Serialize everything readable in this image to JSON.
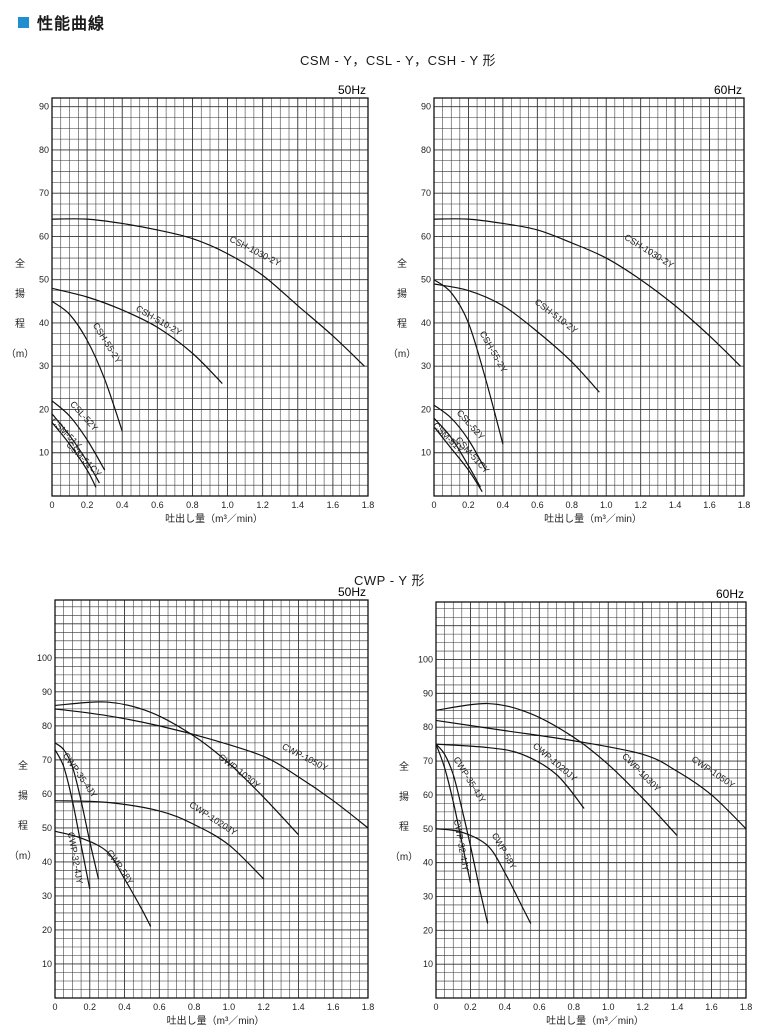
{
  "section": {
    "title": "性能曲線"
  },
  "groups": [
    {
      "title": "CSM - Y，CSL - Y，CSH - Y 形"
    },
    {
      "title": "CWP - Y 形"
    }
  ],
  "chart_data": [
    {
      "type": "line",
      "frequency": "50Hz",
      "xlabel": "吐出し量（m³／min）",
      "ylabel": [
        "全",
        "揚",
        "程",
        "（m）"
      ],
      "xlim": [
        0,
        1.8
      ],
      "ylim": [
        0,
        92
      ],
      "xticks": [
        0,
        0.2,
        0.4,
        0.6,
        0.8,
        1.0,
        1.2,
        1.4,
        1.6,
        1.8
      ],
      "xtick_labels": [
        "0",
        "0.2",
        "0.4",
        "0.6",
        "0.8",
        "1.0",
        "1.2",
        "1.4",
        "1.6",
        "1.8"
      ],
      "yticks": [
        10,
        20,
        30,
        40,
        50,
        60,
        70,
        80,
        90
      ],
      "series": [
        {
          "name": "CSH-1030-2Y",
          "label_at": [
            1.15,
            56
          ],
          "label_angle": 27,
          "points": [
            [
              0,
              64
            ],
            [
              0.2,
              64
            ],
            [
              0.4,
              63
            ],
            [
              0.6,
              61.5
            ],
            [
              0.8,
              59.5
            ],
            [
              1.0,
              56
            ],
            [
              1.2,
              51
            ],
            [
              1.4,
              44
            ],
            [
              1.6,
              37
            ],
            [
              1.78,
              30
            ]
          ]
        },
        {
          "name": "CSH-510-2Y",
          "label_at": [
            0.6,
            40
          ],
          "label_angle": 30,
          "points": [
            [
              0,
              48
            ],
            [
              0.2,
              46
            ],
            [
              0.4,
              43
            ],
            [
              0.6,
              39
            ],
            [
              0.8,
              33
            ],
            [
              0.97,
              26
            ]
          ]
        },
        {
          "name": "CSH-55-2Y",
          "label_at": [
            0.3,
            35
          ],
          "label_angle": 58,
          "points": [
            [
              0,
              45
            ],
            [
              0.1,
              42
            ],
            [
              0.2,
              36
            ],
            [
              0.3,
              27
            ],
            [
              0.4,
              15
            ]
          ]
        },
        {
          "name": "CSL-52Y",
          "label_at": [
            0.17,
            18
          ],
          "label_angle": 48,
          "points": [
            [
              0,
              22
            ],
            [
              0.1,
              18.5
            ],
            [
              0.2,
              13
            ],
            [
              0.3,
              6
            ]
          ]
        },
        {
          "name": "CSM-51Y",
          "label_at": [
            0.07,
            14
          ],
          "label_angle": 45,
          "points": [
            [
              0,
              19
            ],
            [
              0.1,
              14
            ],
            [
              0.2,
              8
            ],
            [
              0.27,
              3
            ]
          ]
        },
        {
          "name": "CSM-51CY",
          "label_at": [
            0.17,
            8
          ],
          "label_angle": 45,
          "points": [
            [
              0,
              17
            ],
            [
              0.1,
              12
            ],
            [
              0.2,
              6
            ],
            [
              0.25,
              2
            ]
          ]
        }
      ]
    },
    {
      "type": "line",
      "frequency": "60Hz",
      "xlabel": "吐出し量（m³／min）",
      "ylabel": [
        "全",
        "揚",
        "程",
        "（m）"
      ],
      "xlim": [
        0,
        1.8
      ],
      "ylim": [
        0,
        92
      ],
      "xticks": [
        0,
        0.2,
        0.4,
        0.6,
        0.8,
        1.0,
        1.2,
        1.4,
        1.6,
        1.8
      ],
      "xtick_labels": [
        "0",
        "0.2",
        "0.4",
        "0.6",
        "0.8",
        "1.0",
        "1.2",
        "1.4",
        "1.6",
        "1.8"
      ],
      "yticks": [
        10,
        20,
        30,
        40,
        50,
        60,
        70,
        80,
        90
      ],
      "series": [
        {
          "name": "CSH-1030-2Y",
          "label_at": [
            1.24,
            56
          ],
          "label_angle": 32,
          "points": [
            [
              0,
              64
            ],
            [
              0.2,
              64
            ],
            [
              0.4,
              63
            ],
            [
              0.6,
              61.5
            ],
            [
              0.8,
              58.5
            ],
            [
              1.0,
              55
            ],
            [
              1.2,
              50
            ],
            [
              1.4,
              44
            ],
            [
              1.6,
              37
            ],
            [
              1.78,
              30
            ]
          ]
        },
        {
          "name": "CSH-510-2Y",
          "label_at": [
            0.7,
            41
          ],
          "label_angle": 37,
          "points": [
            [
              0,
              49
            ],
            [
              0.2,
              47.5
            ],
            [
              0.4,
              44
            ],
            [
              0.6,
              38
            ],
            [
              0.8,
              31
            ],
            [
              0.96,
              24
            ]
          ]
        },
        {
          "name": "CSH-55-2Y",
          "label_at": [
            0.33,
            33
          ],
          "label_angle": 60,
          "points": [
            [
              0,
              50
            ],
            [
              0.1,
              47
            ],
            [
              0.2,
              40
            ],
            [
              0.3,
              27
            ],
            [
              0.4,
              12
            ]
          ]
        },
        {
          "name": "CSL-52Y",
          "label_at": [
            0.2,
            16
          ],
          "label_angle": 48,
          "points": [
            [
              0,
              21
            ],
            [
              0.1,
              18
            ],
            [
              0.2,
              13
            ],
            [
              0.3,
              6
            ]
          ]
        },
        {
          "name": "CSM-51Y",
          "label_at": [
            0.07,
            13
          ],
          "label_angle": 45,
          "points": [
            [
              0,
              18
            ],
            [
              0.1,
              13.5
            ],
            [
              0.2,
              7
            ],
            [
              0.27,
              2
            ]
          ]
        },
        {
          "name": "CSM-51CY",
          "label_at": [
            0.21,
            9
          ],
          "label_angle": 48,
          "points": [
            [
              0,
              16
            ],
            [
              0.1,
              11
            ],
            [
              0.2,
              6
            ],
            [
              0.28,
              1
            ]
          ]
        }
      ]
    },
    {
      "type": "line",
      "frequency": "50Hz",
      "xlabel": "吐出し量（m³／min）",
      "ylabel": [
        "全",
        "揚",
        "程",
        "（m）"
      ],
      "xlim": [
        0,
        1.8
      ],
      "ylim": [
        0,
        117
      ],
      "xticks": [
        0,
        0.2,
        0.4,
        0.6,
        0.8,
        1.0,
        1.2,
        1.4,
        1.6,
        1.8
      ],
      "xtick_labels": [
        "0",
        "0.2",
        "0.4",
        "0.6",
        "0.8",
        "1.0",
        "1.2",
        "1.4",
        "1.6",
        "1.8"
      ],
      "yticks": [
        10,
        20,
        30,
        40,
        50,
        60,
        70,
        80,
        90,
        100
      ],
      "series": [
        {
          "name": "CWP-1050Y",
          "label_at": [
            1.43,
            70
          ],
          "label_angle": 27,
          "points": [
            [
              0,
              85
            ],
            [
              0.3,
              83
            ],
            [
              0.6,
              80
            ],
            [
              0.9,
              76
            ],
            [
              1.2,
              71
            ],
            [
              1.4,
              65
            ],
            [
              1.6,
              58
            ],
            [
              1.8,
              50
            ]
          ]
        },
        {
          "name": "CWP-1030Y",
          "label_at": [
            1.05,
            66
          ],
          "label_angle": 38,
          "points": [
            [
              0,
              86
            ],
            [
              0.3,
              87
            ],
            [
              0.55,
              84
            ],
            [
              0.8,
              77
            ],
            [
              1.0,
              69
            ],
            [
              1.2,
              59
            ],
            [
              1.4,
              48
            ]
          ]
        },
        {
          "name": "CWP-1020JY",
          "label_at": [
            0.9,
            52
          ],
          "label_angle": 33,
          "points": [
            [
              0,
              58
            ],
            [
              0.3,
              57.5
            ],
            [
              0.6,
              55
            ],
            [
              0.8,
              51
            ],
            [
              1.0,
              45
            ],
            [
              1.2,
              35
            ]
          ]
        },
        {
          "name": "CWP-35-4JY",
          "label_at": [
            0.13,
            65
          ],
          "label_angle": 55,
          "points": [
            [
              0,
              75
            ],
            [
              0.05,
              73
            ],
            [
              0.1,
              68
            ],
            [
              0.15,
              58
            ],
            [
              0.2,
              46
            ],
            [
              0.25,
              35
            ]
          ]
        },
        {
          "name": "CWP-32-4JY",
          "label_at": [
            0.1,
            41
          ],
          "label_angle": 80,
          "points": [
            [
              0,
              73
            ],
            [
              0.05,
              68
            ],
            [
              0.1,
              58
            ],
            [
              0.15,
              45
            ],
            [
              0.2,
              32
            ]
          ]
        },
        {
          "name": "CWP-58Y",
          "label_at": [
            0.36,
            38
          ],
          "label_angle": 55,
          "points": [
            [
              0,
              49
            ],
            [
              0.15,
              47
            ],
            [
              0.3,
              43
            ],
            [
              0.4,
              35
            ],
            [
              0.5,
              26
            ],
            [
              0.55,
              21
            ]
          ]
        }
      ]
    },
    {
      "type": "line",
      "frequency": "60Hz",
      "xlabel": "吐出し量（m³／min）",
      "ylabel": [
        "全",
        "揚",
        "程",
        "（m）"
      ],
      "xlim": [
        0,
        1.8
      ],
      "ylim": [
        0,
        117
      ],
      "xticks": [
        0,
        0.2,
        0.4,
        0.6,
        0.8,
        1.0,
        1.2,
        1.4,
        1.6,
        1.8
      ],
      "xtick_labels": [
        "0",
        "0.2",
        "0.4",
        "0.6",
        "0.8",
        "1.0",
        "1.2",
        "1.4",
        "1.6",
        "1.8"
      ],
      "yticks": [
        10,
        20,
        30,
        40,
        50,
        60,
        70,
        80,
        90,
        100
      ],
      "series": [
        {
          "name": "CWP-1050Y",
          "label_at": [
            1.6,
            66
          ],
          "label_angle": 34,
          "points": [
            [
              0,
              82
            ],
            [
              0.4,
              79
            ],
            [
              0.8,
              76
            ],
            [
              1.2,
              72
            ],
            [
              1.4,
              67
            ],
            [
              1.6,
              60
            ],
            [
              1.8,
              50
            ]
          ]
        },
        {
          "name": "CWP-1030Y",
          "label_at": [
            1.18,
            66
          ],
          "label_angle": 45,
          "points": [
            [
              0,
              85
            ],
            [
              0.3,
              87
            ],
            [
              0.55,
              84
            ],
            [
              0.8,
              77
            ],
            [
              1.0,
              69
            ],
            [
              1.2,
              59
            ],
            [
              1.4,
              48
            ]
          ]
        },
        {
          "name": "CWP-1020JY",
          "label_at": [
            0.68,
            69
          ],
          "label_angle": 40,
          "points": [
            [
              0,
              75
            ],
            [
              0.3,
              74
            ],
            [
              0.5,
              72
            ],
            [
              0.7,
              66
            ],
            [
              0.86,
              56
            ]
          ]
        },
        {
          "name": "CWP-35-4JY",
          "label_at": [
            0.18,
            64
          ],
          "label_angle": 58,
          "points": [
            [
              0,
              75
            ],
            [
              0.05,
              72
            ],
            [
              0.1,
              66
            ],
            [
              0.15,
              56
            ],
            [
              0.2,
              45
            ],
            [
              0.25,
              33
            ],
            [
              0.3,
              22
            ]
          ]
        },
        {
          "name": "CWP-32-4JY",
          "label_at": [
            0.13,
            45
          ],
          "label_angle": 80,
          "points": [
            [
              0,
              75
            ],
            [
              0.05,
              68
            ],
            [
              0.1,
              58
            ],
            [
              0.15,
              46
            ],
            [
              0.2,
              34
            ]
          ]
        },
        {
          "name": "CWP-58Y",
          "label_at": [
            0.38,
            43
          ],
          "label_angle": 60,
          "points": [
            [
              0,
              50
            ],
            [
              0.15,
              49
            ],
            [
              0.3,
              45
            ],
            [
              0.4,
              37
            ],
            [
              0.5,
              27
            ],
            [
              0.55,
              22
            ]
          ]
        }
      ]
    }
  ]
}
